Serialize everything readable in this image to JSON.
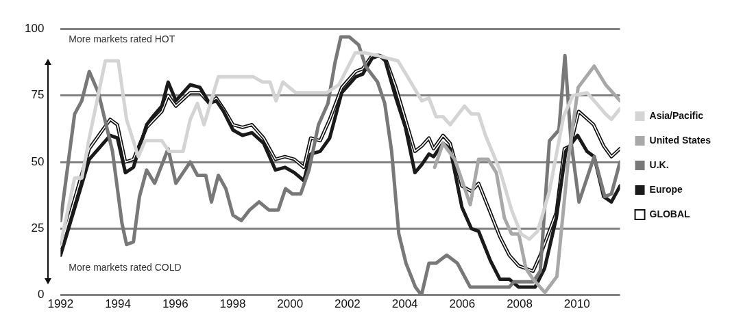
{
  "chart_data": {
    "type": "line",
    "xlim": [
      1992,
      2011.5
    ],
    "xticks": [
      1992,
      1994,
      1996,
      1998,
      2000,
      2002,
      2004,
      2006,
      2008,
      2010
    ],
    "ylim": [
      0,
      100
    ],
    "yticks": [
      0,
      25,
      50,
      75,
      100
    ],
    "grid": "y",
    "legend": "right",
    "marker": "none",
    "line_style": "solid",
    "annotations": [
      "More markets rated HOT",
      "More markets rated COLD"
    ],
    "series": [
      {
        "name": "Asia/Pacific",
        "color": "#d4d4d4",
        "x": [
          1992.0,
          1992.49,
          1992.74,
          1993.0,
          1993.56,
          1994.01,
          1994.3,
          1994.71,
          1994.95,
          1995.53,
          1995.78,
          1996.27,
          1996.52,
          1996.77,
          1997.0,
          1997.5,
          1997.81,
          1998.72,
          1999.05,
          1999.3,
          1999.51,
          1999.75,
          2000.2,
          2001.28,
          2001.7,
          2002.27,
          2002.6,
          2003.02,
          2003.76,
          2004.26,
          2004.59,
          2004.84,
          2005.09,
          2005.33,
          2005.58,
          2006.08,
          2006.32,
          2006.57,
          2006.81,
          2007.31,
          2007.72,
          2008.05,
          2008.34,
          2008.63,
          2009.04,
          2009.53,
          2009.86,
          2010.35,
          2010.68,
          2011.0,
          2011.2,
          2011.5
        ],
        "values": [
          19,
          44,
          44,
          59,
          88,
          88,
          66,
          52,
          58,
          58,
          54,
          54,
          66,
          72,
          64,
          82,
          82,
          82,
          80,
          80,
          73,
          80,
          76,
          76,
          79,
          91,
          91,
          90,
          88,
          79,
          73,
          74,
          67,
          67,
          64,
          71,
          68,
          68,
          60,
          47,
          32,
          23,
          21,
          24,
          39,
          67,
          75,
          76,
          72,
          68,
          66,
          70
        ]
      },
      {
        "name": "United States",
        "color": "#a8a8a8",
        "x": [
          2005.04,
          2005.33,
          2005.74,
          2006.28,
          2006.57,
          2006.9,
          2007.19,
          2007.47,
          2007.72,
          2007.97,
          2008.22,
          2008.47,
          2008.88,
          2009.3,
          2009.7,
          2010.04,
          2010.6,
          2011.0,
          2011.5
        ],
        "values": [
          48,
          57,
          51,
          34,
          51,
          51,
          46,
          29,
          23,
          23,
          10,
          6,
          1,
          7,
          51,
          78,
          86,
          79,
          73
        ]
      },
      {
        "name": "U.K.",
        "color": "#787878",
        "x": [
          1992.0,
          1992.49,
          1992.74,
          1993.0,
          1993.32,
          1993.81,
          1994.14,
          1994.3,
          1994.54,
          1994.75,
          1995.0,
          1995.28,
          1995.75,
          1996.02,
          1996.52,
          1996.77,
          1997.06,
          1997.26,
          1997.5,
          1997.76,
          1998.01,
          1998.3,
          1998.59,
          1998.92,
          1999.26,
          1999.59,
          1999.84,
          2000.08,
          2000.37,
          2000.66,
          2000.99,
          2001.32,
          2001.56,
          2001.77,
          2002.06,
          2002.39,
          2002.63,
          2003.05,
          2003.3,
          2003.54,
          2003.79,
          2004.04,
          2004.37,
          2004.58,
          2004.84,
          2005.09,
          2005.46,
          2005.83,
          2006.28,
          2007.64,
          2007.8,
          2008.47,
          2008.72,
          2009.04,
          2009.37,
          2009.58,
          2009.79,
          2010.07,
          2010.6,
          2010.97,
          2011.2,
          2011.5
        ],
        "values": [
          28,
          68,
          73,
          84,
          76,
          54,
          27,
          19,
          20,
          37,
          47,
          42,
          55,
          42,
          50,
          45,
          45,
          35,
          45,
          40,
          30,
          28,
          32,
          35,
          32,
          32,
          40,
          38,
          38,
          47,
          64,
          72,
          87,
          97,
          97,
          94,
          86,
          80,
          72,
          54,
          23,
          12,
          3,
          0,
          12,
          12,
          15,
          12,
          3,
          3,
          5,
          5,
          9,
          58,
          62,
          90,
          58,
          35,
          52,
          37,
          38,
          50
        ]
      },
      {
        "name": "Europe",
        "color": "#1a1a1a",
        "x": [
          1992.0,
          1993.0,
          1993.73,
          1993.98,
          1994.26,
          1994.54,
          1995.0,
          1995.21,
          1995.53,
          1995.75,
          1996.02,
          1996.52,
          1996.86,
          1997.19,
          1997.43,
          1997.68,
          1998.01,
          1998.34,
          1998.67,
          1999.08,
          1999.49,
          1999.82,
          2000.15,
          2000.48,
          2000.72,
          2001.05,
          2001.38,
          2001.8,
          2002.29,
          2002.53,
          2002.86,
          2003.11,
          2003.32,
          2003.69,
          2004.02,
          2004.35,
          2004.59,
          2004.84,
          2005.0,
          2005.33,
          2005.58,
          2005.99,
          2006.32,
          2006.57,
          2006.98,
          2007.31,
          2007.64,
          2007.97,
          2008.54,
          2008.87,
          2009.28,
          2009.61,
          2010.02,
          2010.35,
          2010.6,
          2010.93,
          2011.2,
          2011.5
        ],
        "values": [
          15,
          51,
          60,
          59,
          46,
          48,
          64,
          67,
          71,
          80,
          73,
          79,
          78,
          72,
          73,
          69,
          62,
          60,
          61,
          57,
          47,
          48,
          46,
          43,
          53,
          54,
          59,
          76,
          82,
          83,
          89,
          90,
          88,
          74,
          63,
          46,
          49,
          53,
          52,
          57,
          55,
          33,
          25,
          24,
          13,
          6,
          6,
          3,
          3,
          10,
          29,
          54,
          60,
          54,
          52,
          37,
          35,
          41
        ]
      },
      {
        "name": "GLOBAL",
        "color": "#111111",
        "x": [
          1992.0,
          1993.0,
          1993.73,
          1993.98,
          1994.26,
          1994.54,
          1995.0,
          1995.53,
          1995.75,
          1996.02,
          1996.52,
          1996.86,
          1997.19,
          1997.43,
          1997.68,
          1998.01,
          1998.34,
          1998.67,
          1999.08,
          1999.49,
          1999.82,
          2000.15,
          2000.48,
          2000.72,
          2001.05,
          2001.38,
          2001.8,
          2002.29,
          2002.53,
          2002.86,
          2003.11,
          2003.32,
          2003.69,
          2004.02,
          2004.35,
          2004.59,
          2004.84,
          2005.0,
          2005.33,
          2005.58,
          2005.99,
          2006.32,
          2006.57,
          2006.98,
          2007.31,
          2007.64,
          2007.97,
          2008.47,
          2008.72,
          2009.28,
          2009.56,
          2009.77,
          2010.06,
          2010.58,
          2010.93,
          2011.2,
          2011.5
        ],
        "values": [
          18,
          55,
          66,
          64,
          50,
          51,
          63,
          69,
          75,
          71,
          76,
          76,
          72,
          74,
          70,
          64,
          63,
          64,
          59,
          51,
          52,
          51,
          48,
          59,
          58,
          66,
          78,
          84,
          85,
          90,
          90,
          89,
          78,
          66,
          54,
          56,
          59,
          55,
          60,
          57,
          41,
          39,
          42,
          31,
          22,
          15,
          11,
          9,
          15,
          31,
          55,
          56,
          69,
          64,
          56,
          52,
          55
        ]
      }
    ]
  }
}
